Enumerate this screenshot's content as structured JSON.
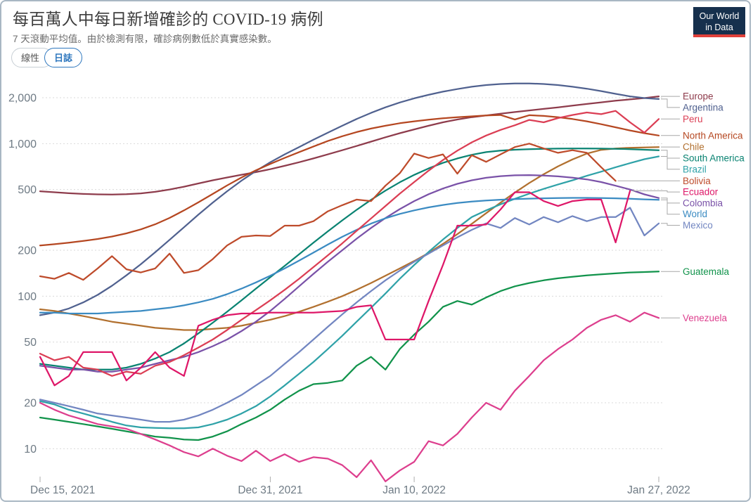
{
  "header": {
    "title": "每百萬人中每日新增確診的 COVID-19 病例",
    "subtitle": "7 天滾動平均值。由於檢測有限，確診病例數低於真實感染數。"
  },
  "logo": {
    "line1": "Our World",
    "line2": "in Data",
    "navy": "#16304d",
    "red": "#e0403a"
  },
  "controls": {
    "linear_label": "線性",
    "log_label": "日誌",
    "active": "log",
    "active_color": "#2e77be"
  },
  "chart_data": {
    "type": "line",
    "title": "每百萬人中每日新增確診的 COVID-19 病例",
    "y_scale": "log",
    "grid": "dashed-horizontal",
    "legend_position": "right",
    "y_ticks": [
      10,
      20,
      50,
      100,
      200,
      500,
      1000,
      2000
    ],
    "y_range": [
      6,
      2800
    ],
    "x_tick_labels": [
      "Dec 15, 2021",
      "Dec 31, 2021",
      "Jan 10, 2022",
      "Jan 27, 2022"
    ],
    "x_tick_days": [
      0,
      16,
      26,
      43
    ],
    "x_range_days": [
      0,
      43
    ],
    "series": [
      {
        "name": "Europe",
        "color": "#8e3c4c",
        "values": [
          487,
          480,
          473,
          468,
          465,
          464,
          466,
          472,
          483,
          500,
          522,
          548,
          575,
          600,
          625,
          650,
          680,
          715,
          755,
          800,
          850,
          905,
          965,
          1030,
          1100,
          1170,
          1240,
          1310,
          1380,
          1440,
          1490,
          1530,
          1570,
          1610,
          1650,
          1690,
          1730,
          1775,
          1820,
          1865,
          1910,
          1950,
          1990,
          2040
        ]
      },
      {
        "name": "Argentina",
        "color": "#50618f",
        "values": [
          75,
          78,
          83,
          91,
          102,
          117,
          137,
          162,
          194,
          234,
          283,
          342,
          410,
          487,
          572,
          662,
          755,
          850,
          950,
          1060,
          1180,
          1310,
          1450,
          1590,
          1730,
          1860,
          1980,
          2090,
          2190,
          2280,
          2360,
          2420,
          2460,
          2480,
          2480,
          2460,
          2420,
          2360,
          2290,
          2210,
          2120,
          2040,
          1990,
          1960
        ]
      },
      {
        "name": "North America",
        "color": "#b54721",
        "values": [
          215,
          219,
          224,
          230,
          237,
          246,
          258,
          274,
          296,
          326,
          365,
          412,
          468,
          532,
          600,
          668,
          736,
          806,
          880,
          958,
          1040,
          1118,
          1190,
          1255,
          1310,
          1360,
          1400,
          1435,
          1465,
          1490,
          1510,
          1530,
          1540,
          1440,
          1535,
          1520,
          1490,
          1450,
          1400,
          1340,
          1280,
          1220,
          1170,
          1130
        ]
      },
      {
        "name": "Chile",
        "color": "#b1702f",
        "values": [
          82,
          80,
          77,
          74,
          71,
          68,
          66,
          64,
          62,
          61,
          60,
          60,
          61,
          62,
          64,
          67,
          70,
          74,
          79,
          85,
          92,
          100,
          110,
          122,
          136,
          152,
          170,
          192,
          220,
          255,
          298,
          350,
          410,
          478,
          552,
          630,
          710,
          788,
          860,
          910,
          930,
          940,
          945,
          950
        ]
      },
      {
        "name": "South America",
        "color": "#0a8372",
        "values": [
          36,
          35,
          34,
          33,
          33,
          33,
          34,
          36,
          39,
          43,
          49,
          57,
          67,
          79,
          94,
          112,
          133,
          158,
          188,
          224,
          266,
          314,
          368,
          428,
          492,
          558,
          624,
          688,
          748,
          800,
          845,
          880,
          900,
          912,
          920,
          925,
          928,
          930,
          930,
          928,
          925,
          920,
          912,
          905
        ]
      },
      {
        "name": "Brazil",
        "color": "#2fa2a8",
        "values": [
          20.5,
          19.5,
          18,
          17,
          16,
          15,
          14.2,
          13.8,
          13.7,
          13.6,
          13.6,
          13.8,
          14.5,
          15.5,
          17,
          19,
          22,
          26,
          31,
          37,
          45,
          55,
          68,
          84,
          104,
          130,
          160,
          195,
          235,
          280,
          330,
          365,
          400,
          435,
          470,
          505,
          540,
          575,
          615,
          655,
          700,
          745,
          790,
          825
        ]
      },
      {
        "name": "Colombia",
        "color": "#7a52a8",
        "values": [
          35,
          34,
          33,
          33,
          32,
          32,
          33,
          34,
          36,
          38,
          40,
          43,
          47,
          52,
          59,
          68,
          80,
          96,
          116,
          140,
          168,
          200,
          238,
          280,
          325,
          372,
          420,
          466,
          508,
          545,
          575,
          597,
          612,
          620,
          622,
          618,
          610,
          598,
          583,
          560,
          530,
          500,
          465,
          440
        ]
      },
      {
        "name": "World",
        "color": "#3b8bc2",
        "values": [
          78,
          78,
          77,
          77,
          77,
          78,
          79,
          80,
          82,
          84,
          87,
          91,
          96,
          103,
          112,
          123,
          136,
          152,
          171,
          193,
          218,
          245,
          272,
          299,
          324,
          346,
          365,
          382,
          396,
          408,
          417,
          424,
          429,
          433,
          436,
          438,
          440,
          441,
          441,
          440,
          438,
          435,
          431,
          428
        ]
      },
      {
        "name": "Mexico",
        "color": "#7286c1",
        "values": [
          21,
          20,
          19,
          18,
          17,
          16.5,
          16,
          15.5,
          15,
          15,
          15.5,
          16.5,
          18,
          20,
          22.5,
          26,
          30,
          36,
          43,
          52,
          63,
          76,
          91,
          108,
          127,
          147,
          168,
          190,
          215,
          243,
          272,
          300,
          280,
          325,
          295,
          330,
          305,
          335,
          310,
          330,
          330,
          380,
          250,
          300
        ]
      },
      {
        "name": "Guatemala",
        "color": "#11934b",
        "values": [
          16,
          15.5,
          15,
          14.5,
          14,
          13.5,
          13,
          12.5,
          12,
          11.8,
          11.5,
          11.4,
          12,
          13,
          14.5,
          16,
          18,
          21,
          24,
          26.5,
          27,
          28,
          35,
          40,
          33,
          45,
          56,
          68,
          85,
          93,
          88,
          98,
          108,
          116,
          122,
          127,
          131,
          134,
          137,
          139,
          141,
          143,
          144,
          145
        ]
      },
      {
        "name": "Peru",
        "color": "#db3e54",
        "values": [
          42,
          38,
          40,
          34,
          33,
          30,
          32,
          31,
          35,
          37,
          41,
          46,
          52,
          60,
          70,
          81,
          94,
          110,
          130,
          155,
          185,
          222,
          268,
          323,
          390,
          470,
          560,
          665,
          780,
          900,
          1020,
          1130,
          1230,
          1320,
          1430,
          1380,
          1470,
          1540,
          1600,
          1560,
          1640,
          1380,
          1180,
          1450
        ]
      },
      {
        "name": "Bolivia",
        "color": "#be4b2b",
        "values": [
          135,
          130,
          142,
          128,
          152,
          183,
          150,
          143,
          152,
          190,
          142,
          148,
          175,
          215,
          245,
          250,
          248,
          290,
          290,
          310,
          360,
          395,
          430,
          420,
          530,
          640,
          860,
          805,
          850,
          635,
          840,
          760,
          850,
          950,
          1000,
          930,
          870,
          905,
          870,
          700,
          570,
          null,
          null,
          null
        ]
      },
      {
        "name": "Ecuador",
        "color": "#de1768",
        "values": [
          40,
          26,
          30,
          43,
          43,
          43,
          28,
          34,
          43,
          34,
          30,
          64,
          70,
          75,
          77,
          77,
          78,
          78,
          78,
          78,
          79,
          80,
          85,
          87,
          52,
          52,
          52,
          93,
          160,
          290,
          290,
          295,
          370,
          480,
          480,
          420,
          390,
          420,
          430,
          430,
          225,
          490,
          null,
          null
        ]
      },
      {
        "name": "Venezuela",
        "color": "#dd3f8e",
        "values": [
          20,
          18,
          16.5,
          15.5,
          14.5,
          14,
          13.5,
          12.5,
          11.5,
          10.5,
          9.5,
          8.9,
          10,
          9,
          8.3,
          9.7,
          8.3,
          9.2,
          8.2,
          8.8,
          8.6,
          7.8,
          6.5,
          8.4,
          6.1,
          7.2,
          8.2,
          11.2,
          10.5,
          12.5,
          16,
          20,
          18,
          24,
          30,
          38,
          45,
          52,
          62,
          70,
          75,
          68,
          78,
          72
        ]
      }
    ]
  }
}
